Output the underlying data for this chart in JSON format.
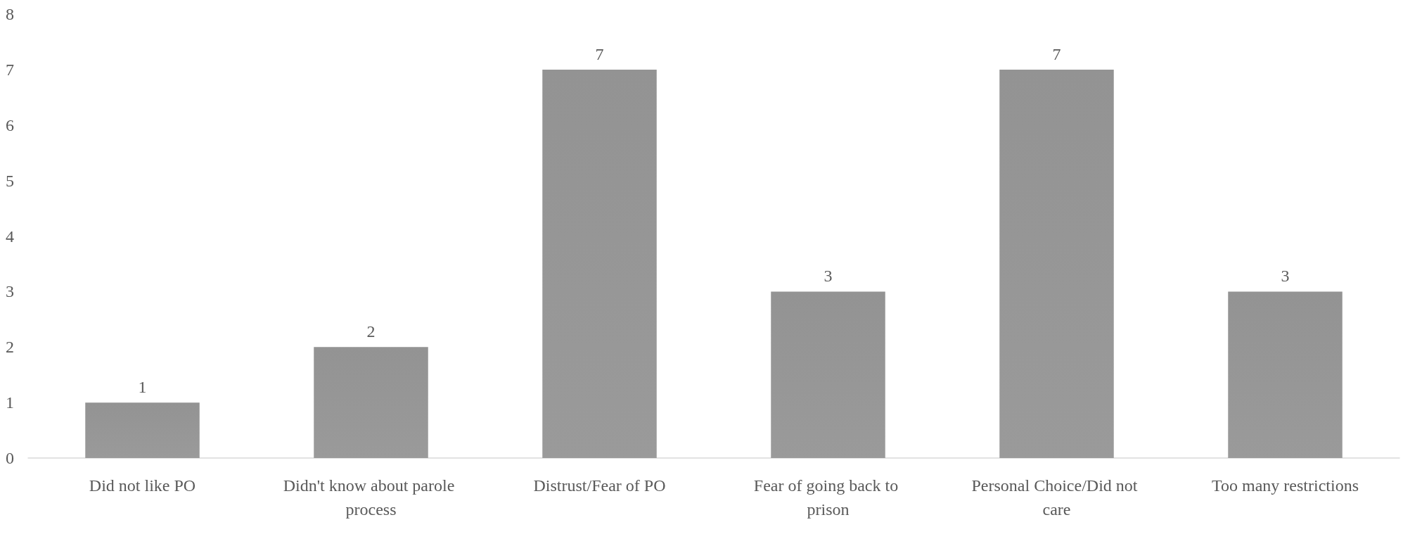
{
  "chart_data": {
    "type": "bar",
    "categories": [
      "Did not like PO",
      "Didn't know about parole process",
      "Distrust/Fear of PO",
      "Fear of going back to prison",
      "Personal Choice/Did not care",
      "Too many restrictions"
    ],
    "values": [
      1,
      2,
      7,
      3,
      7,
      3
    ],
    "color": "#8a8a8a",
    "ylim": [
      0,
      8
    ],
    "yticks": [
      0,
      1,
      2,
      3,
      4,
      5,
      6,
      7,
      8
    ],
    "grid": false,
    "data_labels": true
  }
}
